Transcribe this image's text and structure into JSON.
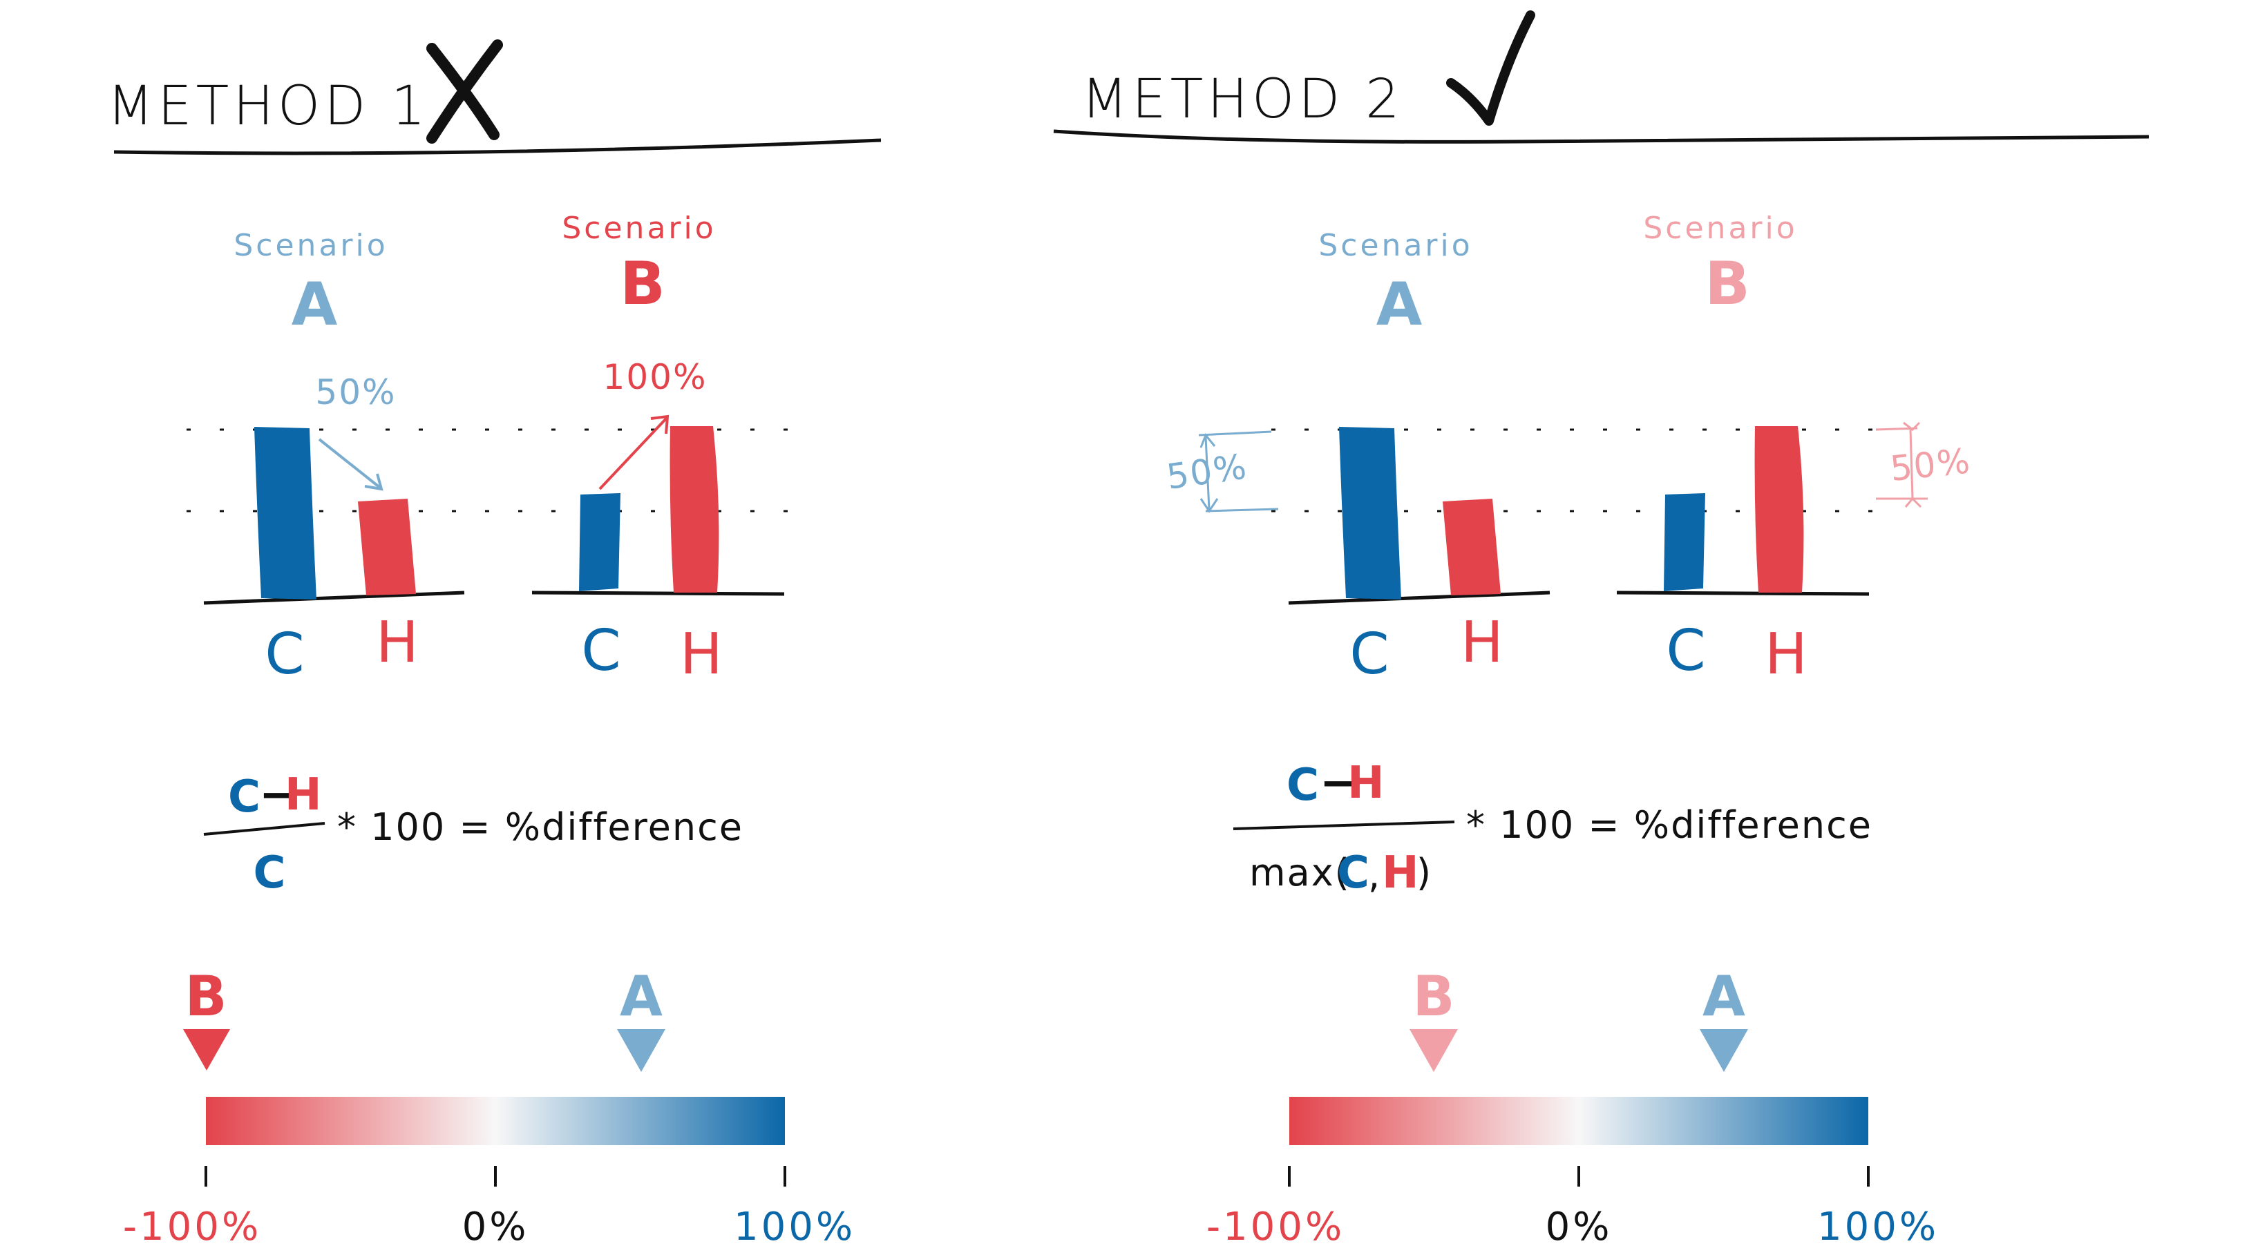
{
  "colors": {
    "red": "#e3434b",
    "blue": "#0b67a8",
    "light_blue": "#7aaccf",
    "light_red": "#f0a0a6",
    "ink": "#111111"
  },
  "method1": {
    "title": "METHOD 1",
    "verdict_icon": "x-mark-icon",
    "scenario_a": {
      "word": "Scenario",
      "letter": "A"
    },
    "scenario_b": {
      "word": "Scenario",
      "letter": "B"
    },
    "scenario_a_note": "50%",
    "scenario_b_note": "100%",
    "bar_label_c": "C",
    "bar_label_h": "H",
    "formula": {
      "num_c": "C",
      "num_minus": "−",
      "num_h": "H",
      "denominator": "C",
      "rhs": "* 100 = %difference"
    },
    "scale": {
      "min_label": "-100%",
      "mid_label": "0%",
      "max_label": "100%",
      "marker_b_letter": "B",
      "marker_a_letter": "A"
    }
  },
  "method2": {
    "title": "METHOD 2",
    "verdict_icon": "check-mark-icon",
    "scenario_a": {
      "word": "Scenario",
      "letter": "A"
    },
    "scenario_b": {
      "word": "Scenario",
      "letter": "B"
    },
    "scenario_a_note": "50%",
    "scenario_b_note": "50%",
    "bar_label_c": "C",
    "bar_label_h": "H",
    "formula": {
      "num_c": "C",
      "num_minus": "−",
      "num_h": "H",
      "den_prefix": "max(",
      "den_c": "C",
      "den_comma": ",",
      "den_h": "H",
      "den_suffix": ")",
      "rhs": "* 100 = %difference"
    },
    "scale": {
      "min_label": "-100%",
      "mid_label": "0%",
      "max_label": "100%",
      "marker_b_letter": "B",
      "marker_a_letter": "A"
    }
  },
  "chart_data": {
    "type": "bar",
    "series_relative_values": {
      "scenario_a": {
        "C": 1.0,
        "H": 0.5
      },
      "scenario_b": {
        "C": 0.5,
        "H": 1.0
      }
    },
    "method1_percent_difference": {
      "A": 50,
      "B": -100
    },
    "method2_percent_difference": {
      "A": 50,
      "B": -50
    },
    "scale_range": [
      -100,
      100
    ]
  }
}
